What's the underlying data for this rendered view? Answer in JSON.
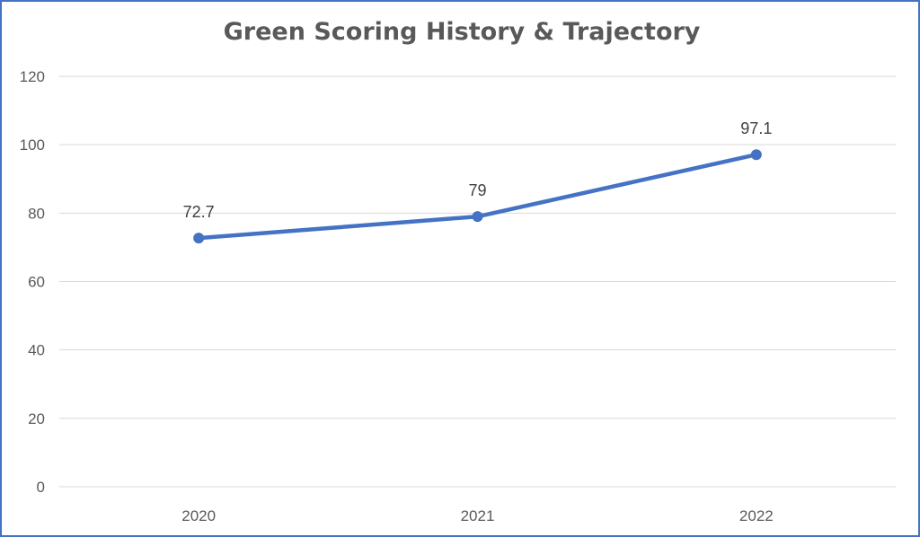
{
  "chart_data": {
    "type": "line",
    "title": "Green Scoring History & Trajectory",
    "xlabel": "",
    "ylabel": "",
    "categories": [
      "2020",
      "2021",
      "2022"
    ],
    "series": [
      {
        "values": [
          72.7,
          79,
          97.1
        ],
        "color": "#4472C4"
      }
    ],
    "data_labels": [
      "72.7",
      "79",
      "97.1"
    ],
    "ylim": [
      0,
      120
    ],
    "yticks": [
      0,
      20,
      40,
      60,
      80,
      100,
      120
    ],
    "grid": true,
    "legend": "none",
    "colors": {
      "frame": "#4472C4",
      "grid": "#D9D9D9",
      "text": "#595959"
    }
  }
}
